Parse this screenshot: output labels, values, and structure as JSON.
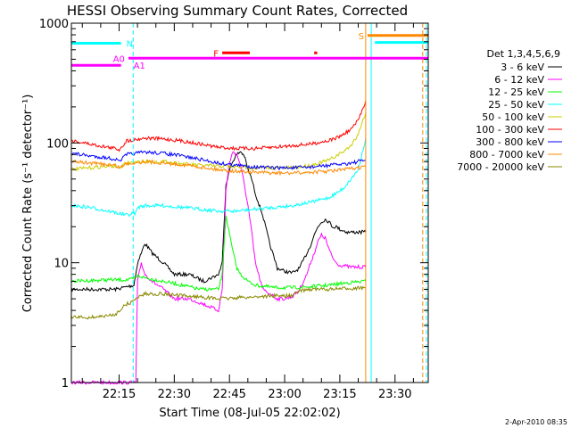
{
  "chart_data": {
    "type": "line",
    "title": "HESSI Observing Summary Count Rates, Corrected",
    "xlabel": "Start Time (08-Jul-05 22:02:02)",
    "ylabel": "Corrected Count Rate (s⁻¹ detector⁻¹)",
    "yscale": "log",
    "ylim": [
      1,
      1000
    ],
    "xlim_minutes_after_start": [
      0,
      97
    ],
    "x_tick_labels": [
      "22:15",
      "22:30",
      "22:45",
      "23:00",
      "23:15",
      "23:30"
    ],
    "x_tick_minutes_after_start": [
      12.97,
      27.97,
      42.97,
      57.97,
      72.97,
      87.97
    ],
    "y_tick_labels": [
      "1",
      "10",
      "100",
      "1000"
    ],
    "y_tick_values": [
      1,
      10,
      100,
      1000
    ],
    "legend": {
      "title": "Det 1,3,4,5,6,9",
      "placement": "outside-right"
    },
    "series": [
      {
        "name": "3 - 6 keV",
        "color": "#000000",
        "x": [
          0,
          12,
          17,
          18,
          20,
          22,
          25,
          28,
          32,
          36,
          40,
          41,
          42,
          43,
          44,
          45,
          46,
          47,
          48,
          49,
          50,
          52,
          54,
          56,
          58,
          60,
          62,
          64,
          65,
          66,
          67,
          68,
          69,
          70,
          71,
          72,
          73,
          74,
          75,
          76,
          77,
          78,
          79,
          80
        ],
        "y": [
          6,
          6,
          6.5,
          10,
          14.5,
          12,
          10,
          8,
          8,
          7,
          8,
          10,
          45,
          60,
          72,
          80,
          85,
          78,
          60,
          50,
          38,
          25,
          14,
          9,
          8.5,
          8.2,
          9,
          12,
          14,
          17,
          20,
          22,
          23,
          22,
          20,
          20,
          19,
          18.5,
          18,
          18,
          18,
          18,
          18,
          18
        ]
      },
      {
        "name": "6 - 12 keV",
        "color": "#ff00ff",
        "x": [
          0,
          10,
          12,
          16,
          17.5,
          18,
          19,
          20,
          22,
          25,
          28,
          32,
          36,
          40,
          41,
          42,
          43,
          44,
          45,
          46,
          47,
          48,
          49,
          50,
          52,
          54,
          56,
          58,
          60,
          62,
          64,
          65,
          66,
          67,
          68,
          69,
          70,
          71,
          72,
          73,
          74,
          75,
          76,
          77,
          78,
          79,
          80
        ],
        "y": [
          1,
          1,
          1,
          1,
          1,
          7,
          10,
          8,
          7,
          6,
          5,
          5,
          4.5,
          4,
          6,
          40,
          70,
          85,
          80,
          65,
          45,
          30,
          18,
          10,
          6,
          5.5,
          5,
          5,
          5.2,
          6,
          8,
          10,
          12,
          15,
          17,
          16,
          13,
          11,
          10,
          9.5,
          9.5,
          9.3,
          9.2,
          9.2,
          9.2,
          9.2,
          9.2
        ]
      },
      {
        "name": "12 - 25 keV",
        "color": "#00ff00",
        "x": [
          0,
          10,
          16,
          17.5,
          18,
          20,
          25,
          30,
          35,
          40,
          41,
          42,
          43,
          44,
          45,
          46,
          48,
          50,
          55,
          60,
          65,
          70,
          75,
          80
        ],
        "y": [
          7,
          7.2,
          7.2,
          7.5,
          7.8,
          7.5,
          7,
          6.5,
          6,
          6,
          8,
          25,
          17,
          12,
          9,
          8,
          7,
          6.5,
          6.2,
          6.2,
          6.3,
          6.5,
          6.8,
          7
        ]
      },
      {
        "name": "25 - 50 keV",
        "color": "#00ffff",
        "x": [
          0,
          5,
          10,
          15,
          17.5,
          18,
          20,
          25,
          30,
          35,
          40,
          45,
          50,
          55,
          60,
          65,
          70,
          72,
          74,
          76,
          78,
          80
        ],
        "y": [
          30,
          29,
          27,
          25,
          26,
          29,
          30,
          30,
          29,
          28,
          27,
          27,
          28,
          29,
          30,
          32,
          35,
          38,
          42,
          50,
          60,
          110
        ]
      },
      {
        "name": "50 - 100 keV",
        "color": "#cccc00",
        "x": [
          0,
          5,
          10,
          12,
          13,
          15,
          20,
          25,
          30,
          35,
          40,
          45,
          50,
          55,
          60,
          65,
          70,
          72,
          74,
          76,
          78,
          80
        ],
        "y": [
          60,
          62,
          64,
          64,
          62,
          68,
          70,
          70,
          67,
          65,
          64,
          63,
          62,
          62,
          62,
          65,
          72,
          78,
          85,
          95,
          120,
          180
        ]
      },
      {
        "name": "100 - 300 keV",
        "color": "#ff0000",
        "x": [
          0,
          5,
          10,
          12,
          13,
          15,
          20,
          25,
          30,
          35,
          40,
          45,
          50,
          55,
          60,
          65,
          70,
          72,
          74,
          76,
          78,
          80
        ],
        "y": [
          105,
          98,
          92,
          90,
          88,
          104,
          110,
          108,
          104,
          98,
          92,
          90,
          90,
          92,
          95,
          98,
          105,
          110,
          118,
          130,
          155,
          225
        ]
      },
      {
        "name": "300 - 800 keV",
        "color": "#0000ff",
        "x": [
          0,
          5,
          10,
          12,
          13,
          15,
          20,
          25,
          30,
          35,
          40,
          45,
          50,
          55,
          60,
          65,
          70,
          72,
          74,
          76,
          78,
          80
        ],
        "y": [
          82,
          78,
          75,
          73,
          70,
          80,
          84,
          82,
          78,
          73,
          68,
          65,
          63,
          62,
          62,
          63,
          65,
          66,
          67,
          68,
          70,
          72
        ]
      },
      {
        "name": "800 - 7000 keV",
        "color": "#ff8800",
        "x": [
          0,
          5,
          10,
          12,
          13,
          15,
          20,
          25,
          30,
          35,
          40,
          45,
          50,
          55,
          60,
          65,
          70,
          72,
          74,
          76,
          78,
          80
        ],
        "y": [
          70,
          68,
          66,
          65,
          62,
          67,
          70,
          68,
          66,
          63,
          60,
          58,
          57,
          56,
          56,
          57,
          58,
          59,
          60,
          61,
          62,
          64
        ]
      },
      {
        "name": "7000 - 20000 keV",
        "color": "#888800",
        "x": [
          0,
          5,
          10,
          12,
          13,
          15,
          17,
          18,
          20,
          25,
          30,
          35,
          40,
          45,
          50,
          55,
          60,
          62,
          64,
          66,
          70,
          75,
          80
        ],
        "y": [
          3.5,
          3.5,
          3.6,
          3.7,
          4,
          4.5,
          4.8,
          5.2,
          5.5,
          5.5,
          5.3,
          5.2,
          5,
          5.1,
          5.2,
          5.3,
          5.3,
          5.8,
          6,
          6,
          6,
          6.1,
          6.2
        ]
      }
    ],
    "annotations": [
      {
        "label": "N",
        "color": "#00ffff",
        "y": 680,
        "x": [
          0,
          13.5
        ]
      },
      {
        "label": "A0",
        "color": "#ff00ff",
        "y": 510,
        "x": [
          15.5,
          97
        ]
      },
      {
        "label": "A1",
        "color": "#ff00ff",
        "y": 445,
        "x": [
          0,
          13.5
        ]
      },
      {
        "label": "F",
        "color": "#ff0000",
        "y": 565,
        "x": [
          41,
          48.5
        ]
      },
      {
        "label": "",
        "color": "#ff0000",
        "y": 565,
        "x": [
          66,
          66.8
        ]
      },
      {
        "label": "S",
        "color": "#ff8800",
        "y": 790,
        "x": [
          80.5,
          97
        ]
      },
      {
        "label": "",
        "color": "#00ffff",
        "y": 690,
        "x": [
          82.5,
          97
        ]
      }
    ],
    "vertical_markers": [
      {
        "x": 0,
        "color": "#00ffff",
        "style": "solid"
      },
      {
        "x": 16.8,
        "color": "#00ffff",
        "style": "dashed"
      },
      {
        "x": 80,
        "color": "#ff8800",
        "style": "solid"
      },
      {
        "x": 81.5,
        "color": "#00ffff",
        "style": "solid"
      },
      {
        "x": 95.5,
        "color": "#ff8800",
        "style": "dashed"
      },
      {
        "x": 96.5,
        "color": "#00ffff",
        "style": "dashed"
      }
    ]
  },
  "footer": {
    "timestamp": "2-Apr-2010 08:35"
  }
}
